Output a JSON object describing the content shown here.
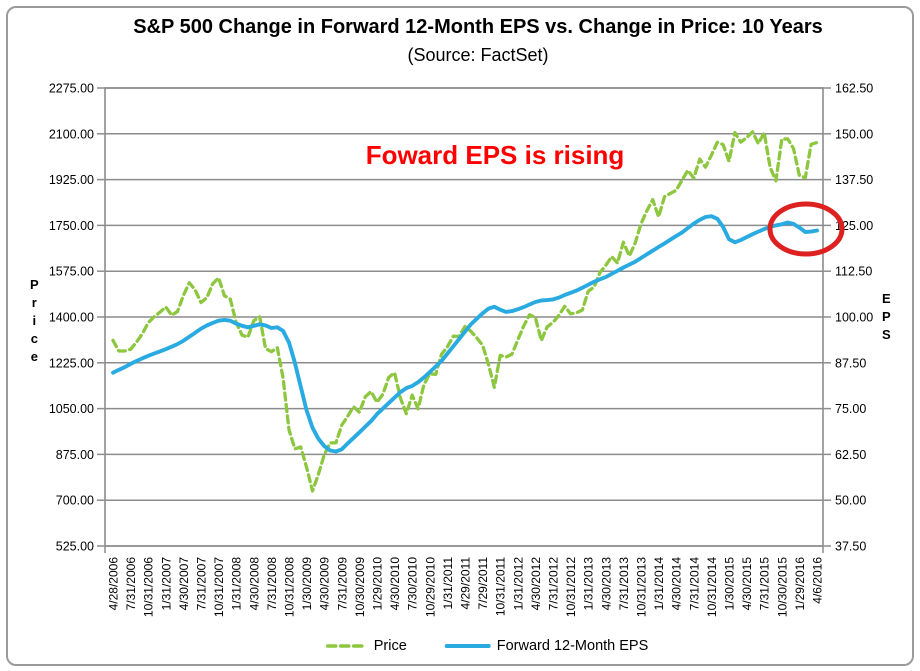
{
  "header": {
    "title": "S&P 500 Change in Forward 12-Month EPS vs. Change in Price: 10 Years",
    "subtitle": "(Source: FactSet)"
  },
  "annotation": {
    "text": "Foward EPS is rising",
    "color": "#ff0000"
  },
  "shapes": {
    "highlight_ellipse_color": "#dd2121"
  },
  "left_axis": {
    "title": "Price",
    "ticks": [
      "2275.00",
      "2100.00",
      "1925.00",
      "1750.00",
      "1575.00",
      "1400.00",
      "1225.00",
      "1050.00",
      "875.00",
      "700.00",
      "525.00"
    ]
  },
  "right_axis": {
    "title": "EPS",
    "ticks": [
      "162.50",
      "150.00",
      "137.50",
      "125.00",
      "112.50",
      "100.00",
      "87.50",
      "75.00",
      "62.50",
      "50.00",
      "37.50"
    ]
  },
  "legend": {
    "items": [
      {
        "label": "Price",
        "color": "#8dc63f",
        "style": "dashed"
      },
      {
        "label": "Forward 12-Month EPS",
        "color": "#29abe2",
        "style": "solid"
      }
    ]
  },
  "colors": {
    "grid": "#8c8c8c",
    "tick_text": "#000000"
  },
  "chart_data": {
    "type": "line",
    "title": "S&P 500 Change in Forward 12-Month EPS vs. Change in Price: 10 Years",
    "subtitle": "(Source: FactSet)",
    "grid": true,
    "legend_position": "bottom",
    "left_ylabel": "Price",
    "right_ylabel": "EPS",
    "left_ylim": [
      525,
      2275
    ],
    "right_ylim": [
      37.5,
      162.5
    ],
    "x_label_step": 3,
    "x_labels": [
      "4/28/2006",
      "7/31/2006",
      "10/31/2006",
      "1/31/2007",
      "4/30/2007",
      "7/31/2007",
      "10/31/2007",
      "1/31/2008",
      "4/30/2008",
      "7/31/2008",
      "10/31/2008",
      "1/30/2009",
      "4/30/2009",
      "7/31/2009",
      "10/30/2009",
      "1/29/2010",
      "4/30/2010",
      "7/30/2010",
      "10/29/2010",
      "1/31/2011",
      "4/29/2011",
      "7/29/2011",
      "10/31/2011",
      "1/31/2012",
      "4/30/2012",
      "7/31/2012",
      "10/31/2012",
      "1/31/2013",
      "4/30/2013",
      "7/31/2013",
      "10/31/2013",
      "1/31/2014",
      "4/30/2014",
      "7/31/2014",
      "10/31/2014",
      "1/30/2015",
      "4/30/2015",
      "7/31/2015",
      "10/30/2015",
      "1/29/2016",
      "4/6/2016"
    ],
    "series": [
      {
        "name": "Price",
        "axis": "left",
        "color": "#8dc63f",
        "dash": true,
        "values": [
          1310.6,
          1270.1,
          1270.2,
          1276.7,
          1303.8,
          1335.9,
          1377.9,
          1400.6,
          1418.3,
          1438.2,
          1406.8,
          1420.9,
          1482.4,
          1530.6,
          1503.4,
          1455.3,
          1474.0,
          1526.8,
          1549.4,
          1481.1,
          1468.4,
          1378.6,
          1330.6,
          1322.7,
          1385.6,
          1400.4,
          1280.0,
          1267.4,
          1282.8,
          1166.4,
          968.8,
          896.2,
          903.3,
          825.9,
          735.1,
          797.9,
          872.8,
          919.1,
          919.3,
          987.5,
          1020.6,
          1057.1,
          1036.2,
          1095.6,
          1115.1,
          1073.9,
          1104.5,
          1169.4,
          1186.7,
          1089.4,
          1030.7,
          1101.6,
          1049.3,
          1141.2,
          1183.3,
          1180.6,
          1257.6,
          1286.1,
          1327.2,
          1325.8,
          1363.6,
          1345.2,
          1320.6,
          1292.3,
          1218.9,
          1131.4,
          1253.3,
          1247.0,
          1257.6,
          1312.4,
          1365.7,
          1408.5,
          1397.9,
          1310.3,
          1362.2,
          1379.3,
          1406.6,
          1440.7,
          1412.2,
          1416.2,
          1426.2,
          1498.1,
          1514.7,
          1569.2,
          1597.6,
          1630.7,
          1606.3,
          1685.7,
          1633.0,
          1681.6,
          1756.5,
          1805.8,
          1848.4,
          1782.6,
          1859.5,
          1872.3,
          1884.0,
          1923.6,
          1960.2,
          1930.7,
          2003.4,
          1972.3,
          2018.1,
          2067.6,
          2058.9,
          1995.0,
          2104.5,
          2067.9,
          2085.5,
          2107.4,
          2063.1,
          2103.8,
          1972.2,
          1920.0,
          2079.4,
          2080.4,
          2043.9,
          1940.2,
          1932.2,
          2059.7,
          2066.7
        ]
      },
      {
        "name": "Forward 12-Month EPS",
        "axis": "right",
        "color": "#29abe2",
        "dash": false,
        "values": [
          84.8,
          85.6,
          86.3,
          87.2,
          88.0,
          88.7,
          89.4,
          90.0,
          90.6,
          91.2,
          91.9,
          92.6,
          93.5,
          94.6,
          95.7,
          96.8,
          97.7,
          98.4,
          99.0,
          99.2,
          99.0,
          98.2,
          97.6,
          97.2,
          97.6,
          98.0,
          97.7,
          97.0,
          97.2,
          96.2,
          93.0,
          87.5,
          81.0,
          74.5,
          69.8,
          66.8,
          64.8,
          63.6,
          63.3,
          63.9,
          65.5,
          67.0,
          68.5,
          70.1,
          71.6,
          73.5,
          75.0,
          76.5,
          78.0,
          79.5,
          80.6,
          81.2,
          82.2,
          83.5,
          85.0,
          86.5,
          88.0,
          90.0,
          92.0,
          94.0,
          96.0,
          98.0,
          99.5,
          101.0,
          102.3,
          102.8,
          102.0,
          101.4,
          101.6,
          102.1,
          102.7,
          103.4,
          104.1,
          104.5,
          104.6,
          104.8,
          105.3,
          106.0,
          106.6,
          107.2,
          108.0,
          108.8,
          109.6,
          110.3,
          110.9,
          111.8,
          112.6,
          113.5,
          114.3,
          115.1,
          116.1,
          117.1,
          118.1,
          119.1,
          120.1,
          121.1,
          122.1,
          123.1,
          124.3,
          125.5,
          126.5,
          127.3,
          127.5,
          126.8,
          124.6,
          121.2,
          120.4,
          121.0,
          121.8,
          122.6,
          123.3,
          124.0,
          124.6,
          125.0,
          125.3,
          125.8,
          125.4,
          124.4,
          123.2,
          123.3,
          123.6
        ]
      }
    ]
  }
}
